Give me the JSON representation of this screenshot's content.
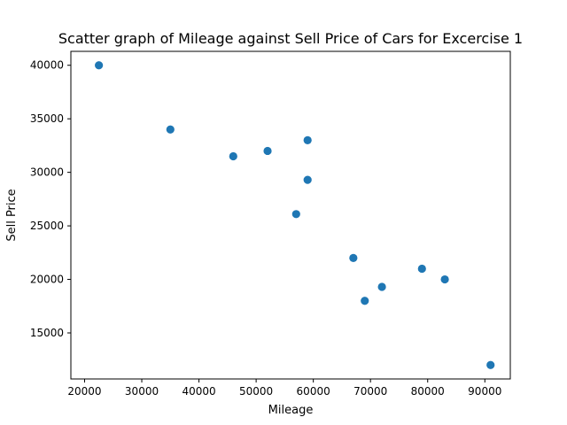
{
  "chart_data": {
    "type": "scatter",
    "title": "Scatter graph of Mileage against Sell Price of Cars for Excercise 1",
    "xlabel": "Mileage",
    "ylabel": "Sell Price",
    "xlim": [
      17600,
      94450
    ],
    "ylim": [
      10700,
      41300
    ],
    "xticks": [
      20000,
      30000,
      40000,
      50000,
      60000,
      70000,
      80000,
      90000
    ],
    "yticks": [
      15000,
      20000,
      25000,
      30000,
      35000,
      40000
    ],
    "grid": false,
    "legend": "none",
    "marker_color": "#1f77b4",
    "points": [
      {
        "x": 22500,
        "y": 40000
      },
      {
        "x": 35000,
        "y": 34000
      },
      {
        "x": 46000,
        "y": 31500
      },
      {
        "x": 52000,
        "y": 32000
      },
      {
        "x": 59000,
        "y": 33000
      },
      {
        "x": 59000,
        "y": 29300
      },
      {
        "x": 57000,
        "y": 26100
      },
      {
        "x": 67000,
        "y": 22000
      },
      {
        "x": 79000,
        "y": 21000
      },
      {
        "x": 83000,
        "y": 20000
      },
      {
        "x": 72000,
        "y": 19300
      },
      {
        "x": 69000,
        "y": 18000
      },
      {
        "x": 91000,
        "y": 12000
      }
    ]
  }
}
